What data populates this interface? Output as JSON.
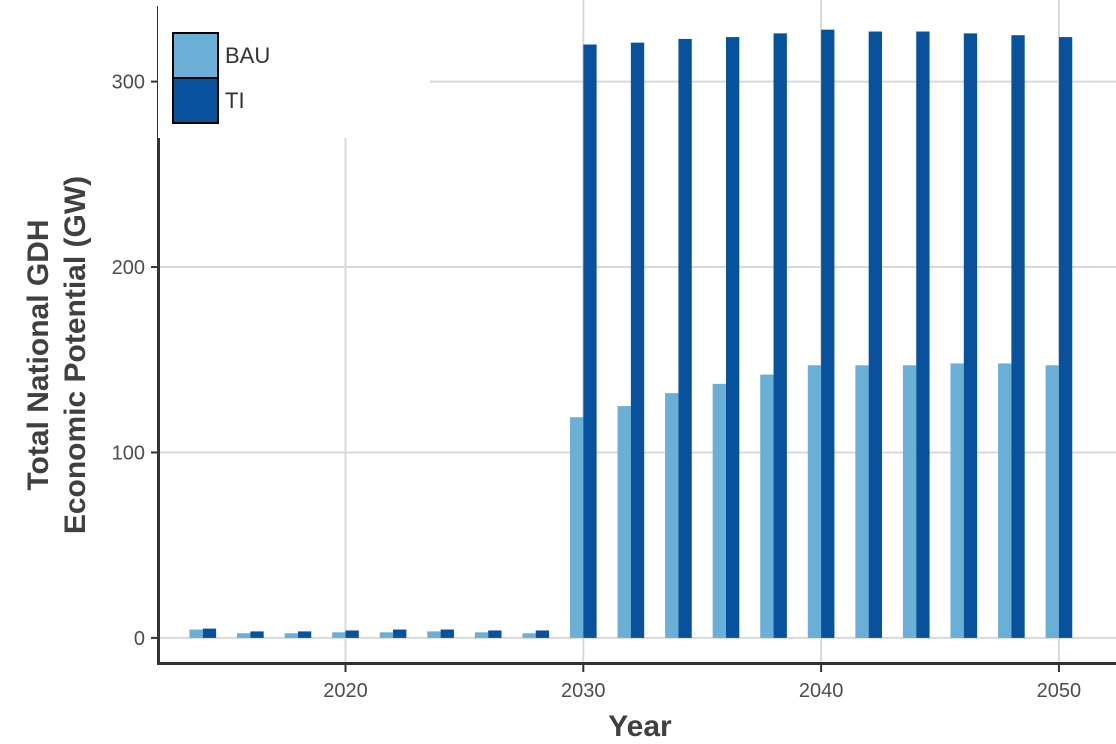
{
  "chart_data": {
    "type": "bar",
    "xlabel": "Year",
    "ylabel_lines": [
      "Total National GDH",
      "Economic Potential (GW)"
    ],
    "x": [
      2014,
      2016,
      2018,
      2020,
      2022,
      2024,
      2026,
      2028,
      2030,
      2032,
      2034,
      2036,
      2038,
      2040,
      2042,
      2044,
      2046,
      2048,
      2050
    ],
    "series": [
      {
        "name": "BAU",
        "color": "#6baed6",
        "values": [
          4.5,
          2.5,
          2.5,
          3,
          3,
          3.5,
          3,
          2.5,
          119,
          125,
          132,
          137,
          142,
          147,
          147,
          147,
          148,
          148,
          147
        ]
      },
      {
        "name": "TI",
        "color": "#08519c",
        "values": [
          5,
          3.5,
          3.5,
          4,
          4.5,
          4.5,
          4,
          4,
          320,
          321,
          323,
          324,
          326,
          328,
          327,
          327,
          326,
          325,
          324
        ]
      }
    ],
    "xticks": [
      2020,
      2030,
      2040,
      2050
    ],
    "yticks": [
      0,
      100,
      200,
      300
    ],
    "xlim": [
      2012.2,
      2052.4
    ],
    "ylim": [
      -13,
      344
    ],
    "grid": true,
    "legend_position": "top-left"
  }
}
